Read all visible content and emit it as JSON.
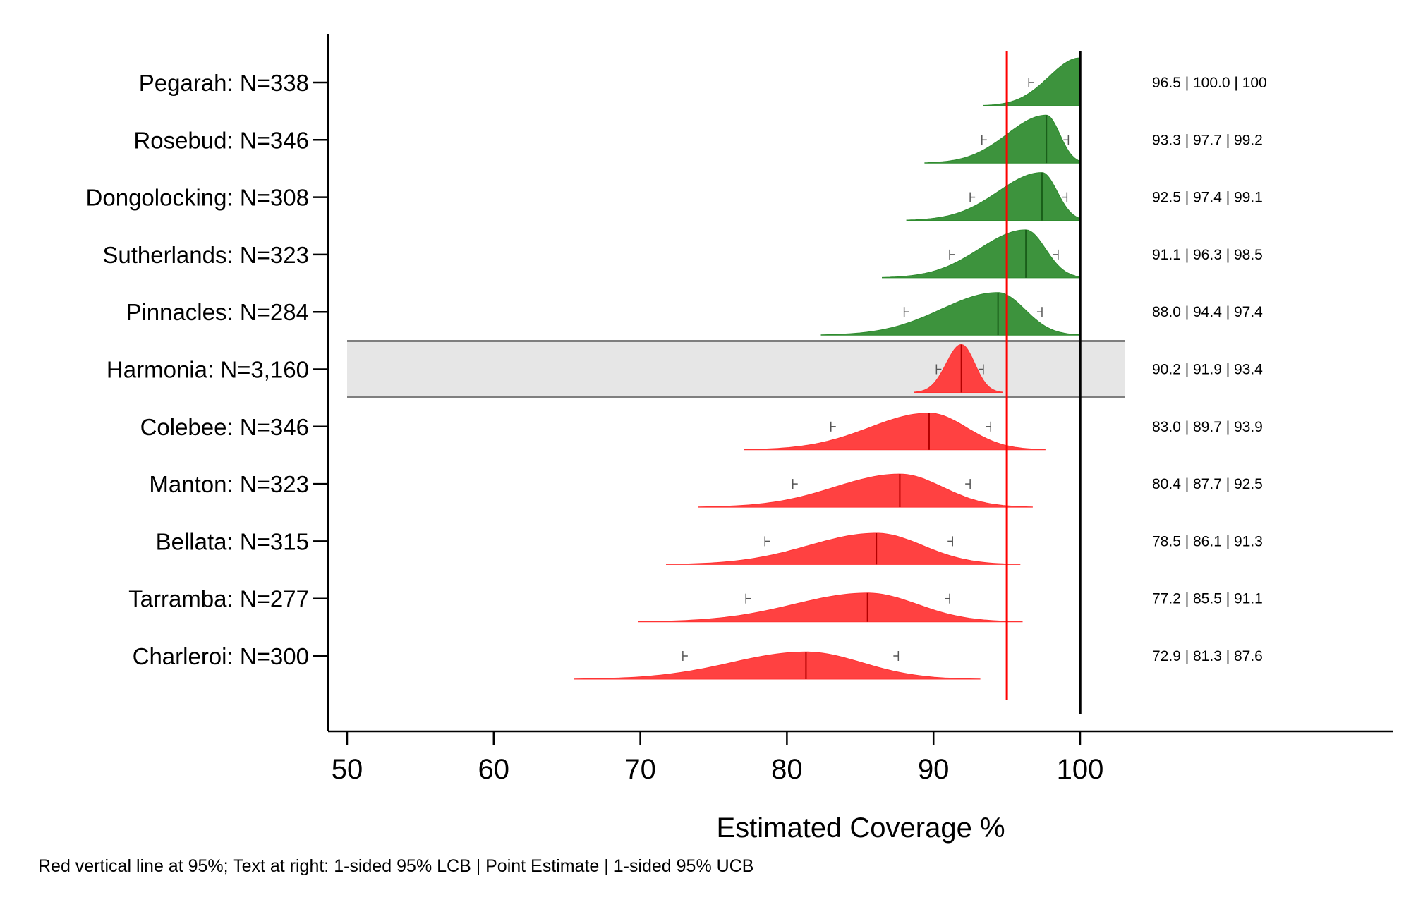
{
  "chart_data": {
    "type": "ridgeline",
    "xlabel": "Estimated Coverage %",
    "xlim": [
      50,
      100
    ],
    "xticks": [
      50,
      60,
      70,
      80,
      90,
      100
    ],
    "reference_line": {
      "value": 95,
      "color": "#ff0000"
    },
    "max_line": {
      "value": 100,
      "color": "#000000"
    },
    "colors": {
      "pass": "#2e8b2e",
      "fail": "#ff3333",
      "highlight_band": "#e6e6e6",
      "highlight_border": "#7f7f7f"
    },
    "note": "Red vertical line at 95%; Text at right: 1-sided 95% LCB | Point Estimate | 1-sided 95% UCB",
    "rows": [
      {
        "label": "Pegarah: N=338",
        "lcb": 96.5,
        "est": 100.0,
        "ucb": 100,
        "est_text": "100.0",
        "ucb_text": "100",
        "lcb_text": "96.5",
        "status": "pass",
        "highlight": false
      },
      {
        "label": "Rosebud: N=346",
        "lcb": 93.3,
        "est": 97.7,
        "ucb": 99.2,
        "est_text": "97.7",
        "ucb_text": "99.2",
        "lcb_text": "93.3",
        "status": "pass",
        "highlight": false
      },
      {
        "label": "Dongolocking: N=308",
        "lcb": 92.5,
        "est": 97.4,
        "ucb": 99.1,
        "est_text": "97.4",
        "ucb_text": "99.1",
        "lcb_text": "92.5",
        "status": "pass",
        "highlight": false
      },
      {
        "label": "Sutherlands: N=323",
        "lcb": 91.1,
        "est": 96.3,
        "ucb": 98.5,
        "est_text": "96.3",
        "ucb_text": "98.5",
        "lcb_text": "91.1",
        "status": "pass",
        "highlight": false
      },
      {
        "label": "Pinnacles: N=284",
        "lcb": 88.0,
        "est": 94.4,
        "ucb": 97.4,
        "est_text": "94.4",
        "ucb_text": "97.4",
        "lcb_text": "88.0",
        "status": "pass",
        "highlight": false
      },
      {
        "label": "Harmonia: N=3,160",
        "lcb": 90.2,
        "est": 91.9,
        "ucb": 93.4,
        "est_text": "91.9",
        "ucb_text": "93.4",
        "lcb_text": "90.2",
        "status": "fail",
        "highlight": true
      },
      {
        "label": "Colebee: N=346",
        "lcb": 83.0,
        "est": 89.7,
        "ucb": 93.9,
        "est_text": "89.7",
        "ucb_text": "93.9",
        "lcb_text": "83.0",
        "status": "fail",
        "highlight": false
      },
      {
        "label": "Manton: N=323",
        "lcb": 80.4,
        "est": 87.7,
        "ucb": 92.5,
        "est_text": "87.7",
        "ucb_text": "92.5",
        "lcb_text": "80.4",
        "status": "fail",
        "highlight": false
      },
      {
        "label": "Bellata: N=315",
        "lcb": 78.5,
        "est": 86.1,
        "ucb": 91.3,
        "est_text": "86.1",
        "ucb_text": "91.3",
        "lcb_text": "78.5",
        "status": "fail",
        "highlight": false
      },
      {
        "label": "Tarramba: N=277",
        "lcb": 77.2,
        "est": 85.5,
        "ucb": 91.1,
        "est_text": "85.5",
        "ucb_text": "91.1",
        "lcb_text": "77.2",
        "status": "fail",
        "highlight": false
      },
      {
        "label": "Charleroi: N=300",
        "lcb": 72.9,
        "est": 81.3,
        "ucb": 87.6,
        "est_text": "81.3",
        "ucb_text": "87.6",
        "lcb_text": "72.9",
        "status": "fail",
        "highlight": false
      }
    ]
  }
}
